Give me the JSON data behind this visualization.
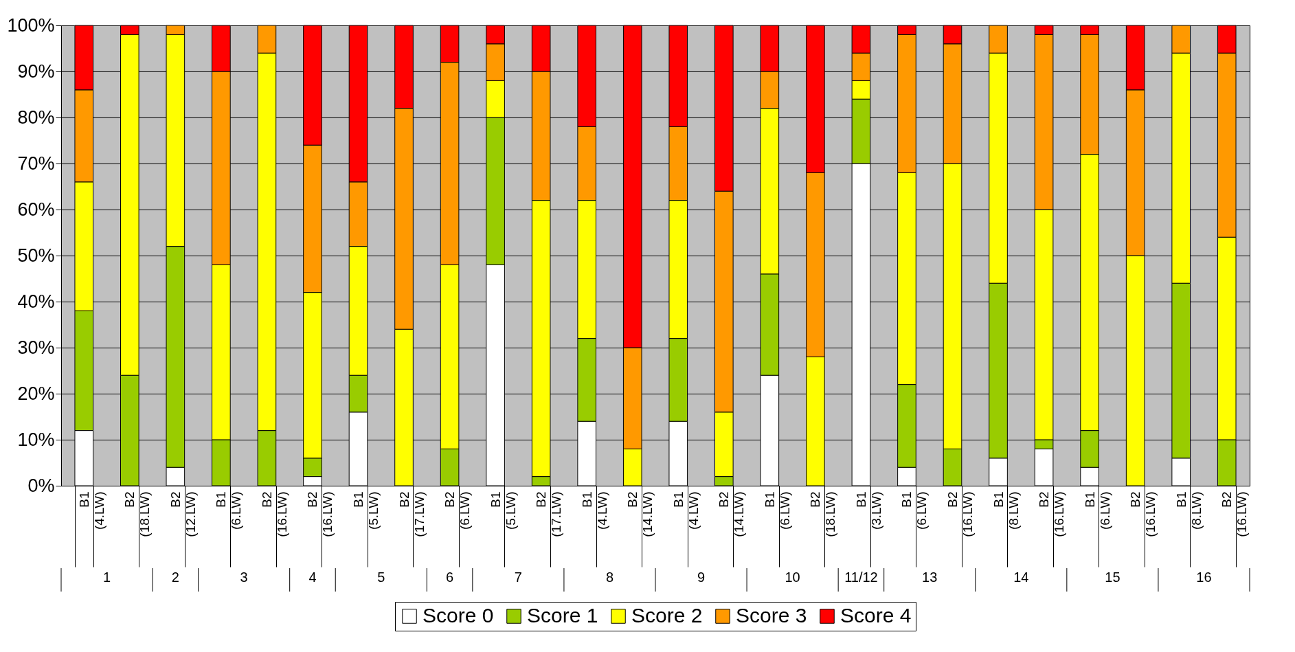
{
  "chart_data": {
    "type": "bar",
    "stacked": true,
    "categories": [
      "B1 (4.LW)",
      "B2 (18.LW)",
      "B2 (12.LW)",
      "B1 (6.LW)",
      "B2 (16.LW)",
      "B2 (16.LW)",
      "B1 (5.LW)",
      "B2 (17.LW)",
      "B2 (6.LW)",
      "B1 (5.LW)",
      "B2 (17.LW)",
      "B1 (4.LW)",
      "B2 (14.LW)",
      "B1 (4.LW)",
      "B2 (14.LW)",
      "B1 (6.LW)",
      "B2 (18.LW)",
      "B1 (3.LW)",
      "B1 (6.LW)",
      "B2 (16.LW)",
      "B1 (8.LW)",
      "B2 (16.LW)",
      "B1 (6.LW)",
      "B2 (16.LW)",
      "B1 (8.LW)",
      "B2 (16.LW)"
    ],
    "series": [
      {
        "name": "Score 0",
        "color": "#ffffff",
        "values": [
          12,
          0,
          4,
          0,
          0,
          2,
          16,
          0,
          0,
          48,
          0,
          14,
          0,
          14,
          0,
          24,
          0,
          70,
          4,
          0,
          6,
          8,
          4,
          0,
          6,
          0
        ]
      },
      {
        "name": "Score 1",
        "color": "#99cc00",
        "values": [
          26,
          24,
          48,
          10,
          12,
          4,
          8,
          0,
          8,
          32,
          2,
          18,
          0,
          18,
          2,
          22,
          0,
          14,
          18,
          8,
          38,
          2,
          8,
          0,
          38,
          10
        ]
      },
      {
        "name": "Score 2",
        "color": "#ffff00",
        "values": [
          28,
          74,
          46,
          38,
          82,
          36,
          28,
          34,
          40,
          8,
          60,
          30,
          8,
          30,
          14,
          36,
          28,
          4,
          46,
          62,
          50,
          50,
          60,
          50,
          50,
          44
        ]
      },
      {
        "name": "Score 3",
        "color": "#ff9900",
        "values": [
          20,
          0,
          2,
          42,
          6,
          32,
          14,
          48,
          44,
          8,
          28,
          16,
          22,
          16,
          48,
          8,
          40,
          6,
          30,
          26,
          6,
          38,
          26,
          36,
          6,
          40
        ]
      },
      {
        "name": "Score 4",
        "color": "#ff0000",
        "values": [
          14,
          2,
          0,
          10,
          0,
          26,
          34,
          18,
          8,
          4,
          10,
          22,
          70,
          22,
          36,
          10,
          32,
          6,
          2,
          4,
          0,
          2,
          2,
          14,
          0,
          6
        ]
      }
    ],
    "ylim": [
      0,
      100
    ],
    "yticks": [
      {
        "value": 0,
        "label": "0%"
      },
      {
        "value": 10,
        "label": "10%"
      },
      {
        "value": 20,
        "label": "20%"
      },
      {
        "value": 30,
        "label": "30%"
      },
      {
        "value": 40,
        "label": "40%"
      },
      {
        "value": 50,
        "label": "50%"
      },
      {
        "value": 60,
        "label": "60%"
      },
      {
        "value": 70,
        "label": "70%"
      },
      {
        "value": 80,
        "label": "80%"
      },
      {
        "value": 90,
        "label": "90%"
      },
      {
        "value": 100,
        "label": "100%"
      }
    ],
    "grid": "y",
    "legend": "bottom",
    "annotations": [
      "1",
      "2",
      "3",
      "4",
      "5",
      "6",
      "7",
      "8",
      "9",
      "10",
      "11/12",
      "13",
      "14",
      "15",
      "16"
    ]
  }
}
